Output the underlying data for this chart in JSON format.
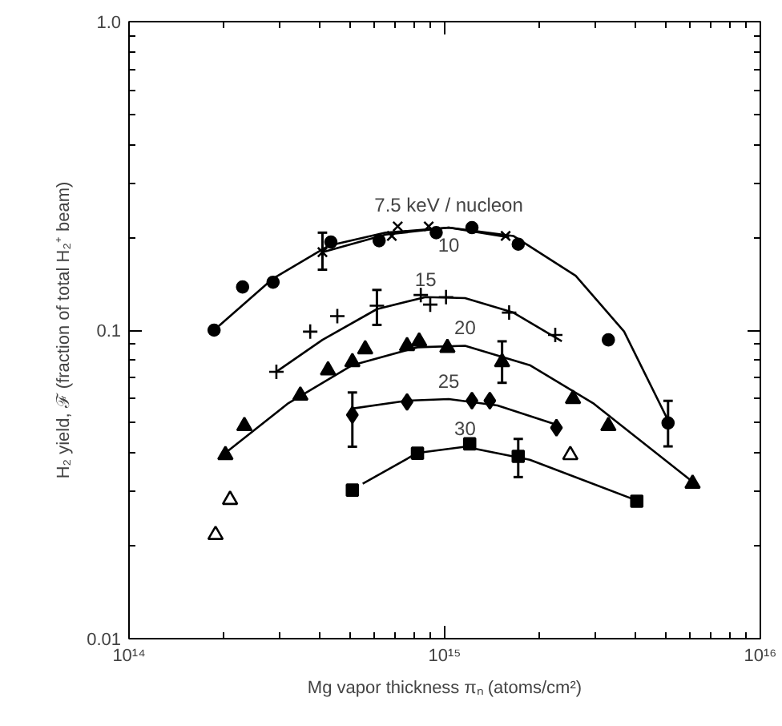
{
  "chart_data": {
    "type": "scatter",
    "xlabel": "Mg vapor thickness πₙ (atoms/cm²)",
    "ylabel": "H₂ yield, ℱ (fraction of total H₂⁺ beam)",
    "log": "xy",
    "grid": false,
    "xlim": [
      100000000000000.0,
      1e+16
    ],
    "ylim": [
      0.01,
      1.0
    ],
    "xticks": [
      {
        "value": 100000000000000.0,
        "label": "10¹⁴"
      },
      {
        "value": 1000000000000000.0,
        "label": "10¹⁵"
      },
      {
        "value": 1e+16,
        "label": "10¹⁶"
      }
    ],
    "yticks": [
      {
        "value": 0.01,
        "label": "0.01"
      },
      {
        "value": 0.1,
        "label": "0.1"
      },
      {
        "value": 1.0,
        "label": "1.0"
      }
    ],
    "series": [
      {
        "marker": "circle",
        "color": "#000000",
        "x": [
          186000000000000.0,
          229000000000000.0,
          286000000000000.0,
          436000000000000.0,
          620000000000000.0,
          940000000000000.0,
          1220000000000000.0,
          1710000000000000.0,
          3300000000000000.0,
          5100000000000000.0
        ],
        "values": [
          0.1,
          0.138,
          0.143,
          0.193,
          0.195,
          0.207,
          0.215,
          0.19,
          0.093,
          0.05
        ],
        "errors": [
          null,
          null,
          null,
          null,
          null,
          null,
          null,
          null,
          null,
          [
            0.042,
            0.059
          ]
        ]
      },
      {
        "marker": "x",
        "color": "#000000",
        "x": [
          410000000000000.0,
          680000000000000.0,
          710000000000000.0,
          890000000000000.0,
          1560000000000000.0
        ],
        "values": [
          0.179,
          0.202,
          0.217,
          0.217,
          0.202
        ],
        "errors": [
          [
            0.157,
            0.207
          ],
          null,
          null,
          null,
          null
        ]
      },
      {
        "marker": "cross",
        "color": "#000000",
        "x": [
          293000000000000.0,
          375000000000000.0,
          457000000000000.0,
          610000000000000.0,
          840000000000000.0,
          900000000000000.0,
          1010000000000000.0,
          1600000000000000.0,
          2240000000000000.0
        ],
        "values": [
          0.0733,
          0.0989,
          0.111,
          0.12,
          0.13,
          0.121,
          0.128,
          0.114,
          0.0965
        ],
        "errors": [
          null,
          null,
          null,
          [
            0.104,
            0.135
          ],
          null,
          null,
          null,
          null,
          null
        ]
      },
      {
        "marker": "triangle",
        "color": "#000000",
        "x": [
          202000000000000.0,
          232000000000000.0,
          349000000000000.0,
          427000000000000.0,
          510000000000000.0,
          560000000000000.0,
          760000000000000.0,
          830000000000000.0,
          1020000000000000.0,
          1520000000000000.0,
          2550000000000000.0,
          3300000000000000.0,
          6100000000000000.0
        ],
        "values": [
          0.0394,
          0.0489,
          0.0614,
          0.0741,
          0.0788,
          0.0867,
          0.0888,
          0.092,
          0.0877,
          0.0788,
          0.0599,
          0.0489,
          0.0318
        ],
        "errors": [
          null,
          null,
          null,
          null,
          null,
          null,
          null,
          null,
          null,
          [
            0.0675,
            0.092
          ],
          null,
          null,
          null
        ]
      },
      {
        "marker": "diamond",
        "color": "#000000",
        "x": [
          510000000000000.0,
          760000000000000.0,
          1220000000000000.0,
          1390000000000000.0,
          2260000000000000.0
        ],
        "values": [
          0.0531,
          0.0585,
          0.0591,
          0.0591,
          0.0483
        ],
        "errors": [
          [
            0.0419,
            0.0628
          ],
          null,
          null,
          null,
          null
        ]
      },
      {
        "marker": "square",
        "color": "#000000",
        "x": [
          510000000000000.0,
          820000000000000.0,
          1200000000000000.0,
          1710000000000000.0,
          4060000000000000.0
        ],
        "values": [
          0.0303,
          0.0399,
          0.0428,
          0.039,
          0.0279
        ],
        "errors": [
          null,
          null,
          null,
          [
            0.0334,
            0.0444
          ],
          null
        ]
      },
      {
        "marker": "triangle-open",
        "color": "#000000",
        "x": [
          188000000000000.0,
          209000000000000.0,
          2500000000000000.0
        ],
        "values": [
          0.0217,
          0.0282,
          0.0394
        ]
      },
      {
        "type": "line",
        "name": "7.5 keV / nucleon",
        "color": "#000000",
        "x": [
          186000000000000.0,
          286000000000000.0,
          430000000000000.0,
          650000000000000.0,
          1030000000000000.0,
          1650000000000000.0,
          2600000000000000.0,
          3700000000000000.0,
          5100000000000000.0
        ],
        "values": [
          0.1,
          0.147,
          0.188,
          0.207,
          0.215,
          0.202,
          0.15,
          0.099,
          0.051
        ]
      },
      {
        "type": "line",
        "name": "10",
        "color": "#000000",
        "x": [
          410000000000000.0,
          650000000000000.0,
          1030000000000000.0,
          1600000000000000.0
        ],
        "values": [
          0.179,
          0.204,
          0.215,
          0.2
        ]
      },
      {
        "type": "line",
        "name": "15",
        "color": "#000000",
        "x": [
          293000000000000.0,
          410000000000000.0,
          610000000000000.0,
          870000000000000.0,
          1160000000000000.0,
          1650000000000000.0,
          2350000000000000.0
        ],
        "values": [
          0.0733,
          0.093,
          0.117,
          0.128,
          0.127,
          0.114,
          0.092
        ]
      },
      {
        "type": "line",
        "name": "20",
        "color": "#000000",
        "x": [
          202000000000000.0,
          320000000000000.0,
          510000000000000.0,
          820000000000000.0,
          1160000000000000.0,
          1860000000000000.0,
          2950000000000000.0,
          6000000000000000.0
        ],
        "values": [
          0.04,
          0.058,
          0.077,
          0.088,
          0.089,
          0.077,
          0.058,
          0.0327
        ]
      },
      {
        "type": "line",
        "name": "25",
        "color": "#000000",
        "x": [
          510000000000000.0,
          760000000000000.0,
          1030000000000000.0,
          1470000000000000.0,
          2260000000000000.0
        ],
        "values": [
          0.0557,
          0.0591,
          0.0598,
          0.057,
          0.0494
        ]
      },
      {
        "type": "line",
        "name": "30",
        "color": "#000000",
        "x": [
          550000000000000.0,
          820000000000000.0,
          1160000000000000.0,
          1860000000000000.0,
          4000000000000000.0
        ],
        "values": [
          0.0318,
          0.04,
          0.0419,
          0.038,
          0.0282
        ]
      }
    ]
  }
}
